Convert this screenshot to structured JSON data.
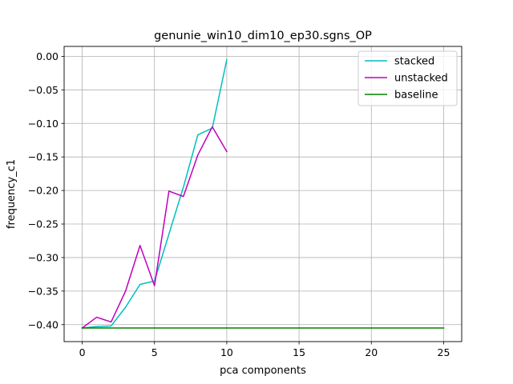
{
  "chart_data": {
    "type": "line",
    "title": "genunie_win10_dim10_ep30.sgns_OP",
    "xlabel": "pca components",
    "ylabel": "frequency_c1",
    "xlim": [
      -1.25,
      26.25
    ],
    "ylim": [
      -0.4253,
      0.0148
    ],
    "xticks": [
      0,
      5,
      10,
      15,
      20,
      25
    ],
    "xtick_labels": [
      "0",
      "5",
      "10",
      "15",
      "20",
      "25"
    ],
    "yticks": [
      0.0,
      -0.05,
      -0.1,
      -0.15,
      -0.2,
      -0.25,
      -0.3,
      -0.35,
      -0.4
    ],
    "ytick_labels": [
      "0.00",
      "−0.05",
      "−0.10",
      "−0.15",
      "−0.20",
      "−0.25",
      "−0.30",
      "−0.35",
      "−0.40"
    ],
    "grid": true,
    "legend_position": "top-right",
    "series": [
      {
        "name": "stacked",
        "color": "#00bfbf",
        "x": [
          0,
          1,
          2,
          3,
          4,
          5,
          6,
          7,
          8,
          9,
          10
        ],
        "values": [
          -0.405,
          -0.403,
          -0.402,
          -0.374,
          -0.34,
          -0.335,
          -0.265,
          -0.195,
          -0.117,
          -0.107,
          -0.005
        ]
      },
      {
        "name": "unstacked",
        "color": "#bf00bf",
        "x": [
          0,
          1,
          2,
          3,
          4,
          5,
          6,
          7,
          8,
          9,
          10
        ],
        "values": [
          -0.405,
          -0.389,
          -0.396,
          -0.35,
          -0.282,
          -0.342,
          -0.201,
          -0.209,
          -0.147,
          -0.105,
          -0.142
        ]
      },
      {
        "name": "baseline",
        "color": "#008000",
        "x": [
          0,
          25
        ],
        "values": [
          -0.405,
          -0.405
        ]
      }
    ]
  }
}
